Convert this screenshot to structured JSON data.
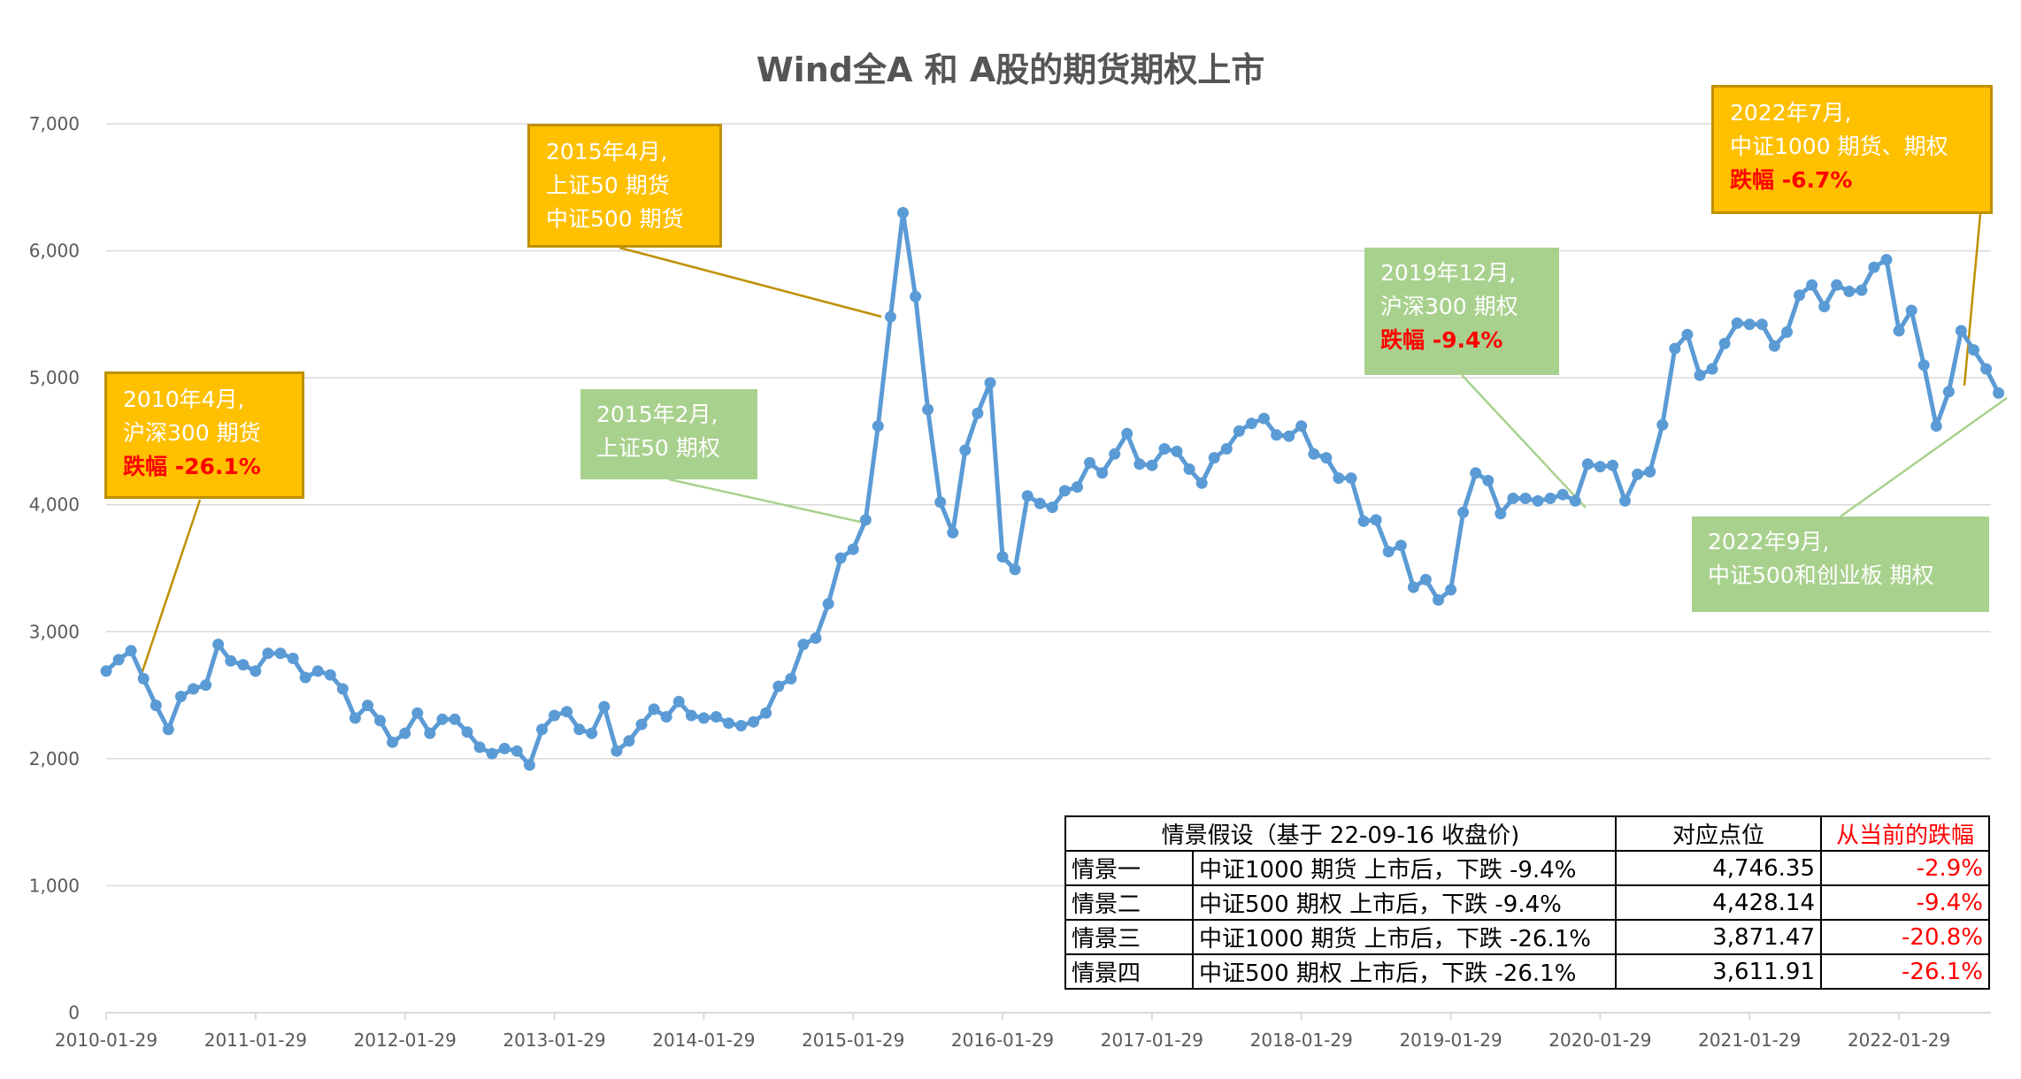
{
  "title": "Wind全A 和 A股的期货期权上市",
  "chart_data": {
    "type": "line",
    "title": "Wind全A 和 A股的期货期权上市",
    "ylim": [
      0,
      7000
    ],
    "yticks": [
      "0",
      "1,000",
      "2,000",
      "3,000",
      "4,000",
      "5,000",
      "6,000",
      "7,000"
    ],
    "xticks": [
      "2010-01-29",
      "2011-01-29",
      "2012-01-29",
      "2013-01-29",
      "2014-01-29",
      "2015-01-29",
      "2016-01-29",
      "2017-01-29",
      "2018-01-29",
      "2019-01-29",
      "2020-01-29",
      "2021-01-29",
      "2022-01-29"
    ],
    "grid": true,
    "series": [
      {
        "color": "#5b9bd5",
        "x_start": "2010-01-29",
        "frequency": "monthly",
        "values": [
          2690,
          2780,
          2850,
          2630,
          2420,
          2230,
          2490,
          2550,
          2580,
          2900,
          2770,
          2740,
          2690,
          2830,
          2830,
          2790,
          2640,
          2690,
          2660,
          2550,
          2320,
          2420,
          2300,
          2130,
          2200,
          2360,
          2200,
          2310,
          2310,
          2210,
          2090,
          2040,
          2080,
          2060,
          1950,
          2230,
          2340,
          2370,
          2230,
          2200,
          2410,
          2060,
          2140,
          2270,
          2390,
          2330,
          2450,
          2340,
          2320,
          2330,
          2280,
          2260,
          2290,
          2360,
          2570,
          2630,
          2900,
          2950,
          3220,
          3580,
          3650,
          3880,
          4620,
          5480,
          6300,
          5640,
          4750,
          4020,
          3780,
          4430,
          4720,
          4960,
          3590,
          3490,
          4070,
          4010,
          3980,
          4110,
          4140,
          4330,
          4250,
          4400,
          4560,
          4320,
          4310,
          4440,
          4420,
          4280,
          4170,
          4370,
          4440,
          4580,
          4640,
          4680,
          4550,
          4540,
          4620,
          4400,
          4370,
          4210,
          4210,
          3870,
          3880,
          3630,
          3680,
          3350,
          3410,
          3250,
          3330,
          3940,
          4250,
          4190,
          3930,
          4050,
          4050,
          4030,
          4050,
          4080,
          4030,
          4320,
          4300,
          4310,
          4030,
          4240,
          4260,
          4630,
          5230,
          5340,
          5020,
          5070,
          5270,
          5430,
          5420,
          5420,
          5250,
          5360,
          5650,
          5730,
          5560,
          5730,
          5680,
          5690,
          5870,
          5930,
          5370,
          5530,
          5100,
          4620,
          4890,
          5370,
          5220,
          5070,
          4880
        ]
      }
    ],
    "annotations": [
      {
        "lines": [
          "2010年4月,",
          "沪深300 期货"
        ],
        "highlight": "跌幅 -26.1%",
        "style": "gold",
        "x": "2010-04-30"
      },
      {
        "lines": [
          "2015年4月,",
          "上证50 期货",
          "中证500 期货"
        ],
        "highlight": "",
        "style": "gold",
        "x": "2015-04-30"
      },
      {
        "lines": [
          "2015年2月,",
          "上证50 期权"
        ],
        "highlight": "",
        "style": "green",
        "x": "2015-02-27"
      },
      {
        "lines": [
          "2019年12月,",
          "沪深300 期权"
        ],
        "highlight": "跌幅 -9.4%",
        "style": "green",
        "x": "2019-12-31"
      },
      {
        "lines": [
          "2022年7月,",
          "中证1000 期货、期权"
        ],
        "highlight": "跌幅 -6.7%",
        "style": "gold",
        "x": "2022-07-29"
      },
      {
        "lines": [
          "2022年9月,",
          "中证500和创业板 期权"
        ],
        "highlight": "",
        "style": "green",
        "x": "2022-09-16"
      }
    ]
  },
  "table": {
    "headers": [
      "情景假设（基于 22-09-16 收盘价)",
      "对应点位",
      "从当前的跌幅"
    ],
    "rows": [
      {
        "name": "情景一",
        "desc": "中证1000 期货 上市后，下跌 -9.4%",
        "level": "4,746.35",
        "drop": "-2.9%"
      },
      {
        "name": "情景二",
        "desc": "中证500 期权 上市后，下跌 -9.4%",
        "level": "4,428.14",
        "drop": "-9.4%"
      },
      {
        "name": "情景三",
        "desc": "中证1000 期货 上市后，下跌 -26.1%",
        "level": "3,871.47",
        "drop": "-20.8%"
      },
      {
        "name": "情景四",
        "desc": "中证500 期权 上市后，下跌 -26.1%",
        "level": "3,611.91",
        "drop": "-26.1%"
      }
    ]
  }
}
